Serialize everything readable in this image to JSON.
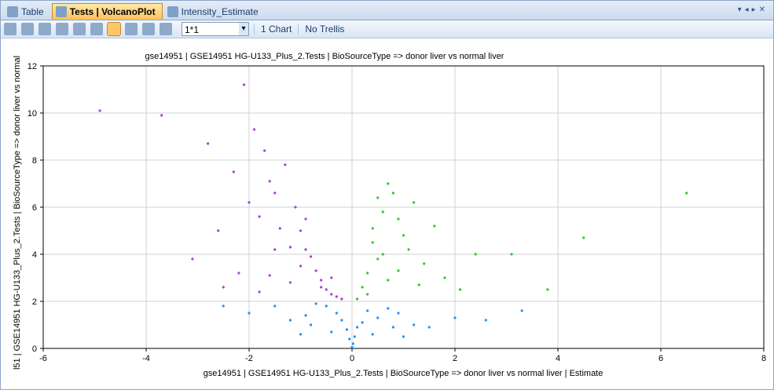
{
  "tabs": [
    "Table",
    "Tests | VolcanoPlot",
    "Intensity_Estimate"
  ],
  "toolbar": {
    "combo": "1*1",
    "buttons": [
      "1 Chart",
      "No Trellis"
    ]
  },
  "chart_data": {
    "type": "scatter",
    "title": "gse14951 | GSE14951 HG-U133_Plus_2.Tests | BioSourceType => donor liver vs normal liver",
    "x_label": "gse14951 | GSE14951 HG-U133_Plus_2.Tests | BioSourceType => donor liver vs normal liver | Estimate",
    "y_label": "l51 | GSE14951 HG-U133_Plus_2.Tests | BioSourceType => donor liver vs normal",
    "xlim": [
      -6,
      8
    ],
    "xticks": [
      -6,
      -4,
      -2,
      0,
      2,
      4,
      6,
      8
    ],
    "ylim": [
      0,
      12
    ],
    "yticks": [
      0,
      2,
      4,
      6,
      8,
      10,
      12
    ],
    "grid": true,
    "series": [
      {
        "color": "#a83fd8",
        "x": [
          -4.9,
          -3.7,
          -3.1,
          -2.8,
          -2.6,
          -2.3,
          -2.1,
          -2.0,
          -1.9,
          -1.8,
          -1.7,
          -1.6,
          -1.5,
          -1.4,
          -1.3,
          -1.2,
          -1.1,
          -1.0,
          -0.9,
          -0.8,
          -0.7,
          -0.6,
          -0.5,
          -0.4,
          -0.3,
          -0.2,
          -1.5,
          -1.0,
          -0.6,
          -2.2,
          -1.8,
          -1.2,
          -0.9,
          -0.4,
          -2.5,
          -1.6
        ],
        "values": [
          10.1,
          9.9,
          3.8,
          8.7,
          5.0,
          7.5,
          11.2,
          6.2,
          9.3,
          5.6,
          8.4,
          7.1,
          6.6,
          5.1,
          7.8,
          4.3,
          6.0,
          5.0,
          4.2,
          3.9,
          3.3,
          2.9,
          2.5,
          2.3,
          2.2,
          2.1,
          4.2,
          3.5,
          2.6,
          3.2,
          2.4,
          2.8,
          5.5,
          3.0,
          2.6,
          3.1
        ]
      },
      {
        "color": "#33c433",
        "x": [
          0.1,
          0.2,
          0.3,
          0.4,
          0.5,
          0.6,
          0.7,
          0.8,
          0.9,
          1.0,
          1.1,
          1.2,
          1.4,
          1.6,
          1.8,
          2.1,
          2.4,
          3.1,
          3.8,
          4.5,
          6.5,
          0.3,
          0.5,
          0.7,
          0.4,
          0.9,
          1.3,
          0.6
        ],
        "values": [
          2.1,
          2.6,
          3.2,
          4.5,
          6.4,
          5.8,
          7.0,
          6.6,
          5.5,
          4.8,
          4.2,
          6.2,
          3.6,
          5.2,
          3.0,
          2.5,
          4.0,
          4.0,
          2.5,
          4.7,
          6.6,
          2.3,
          3.8,
          2.9,
          5.1,
          3.3,
          2.7,
          4.0
        ]
      },
      {
        "color": "#2490f0",
        "x": [
          0,
          0.02,
          -0.05,
          0.05,
          -0.1,
          0.1,
          -0.2,
          0.2,
          -0.3,
          0.3,
          -0.5,
          0.5,
          -0.7,
          0.7,
          -0.9,
          0.9,
          -1.2,
          1.2,
          -1.5,
          1.5,
          -2.0,
          2.0,
          -2.5,
          2.6,
          3.3,
          -0.4,
          0.4,
          -0.8,
          0.8,
          -1.0,
          1.0
        ],
        "values": [
          0.05,
          0.2,
          0.4,
          0.5,
          0.8,
          0.9,
          1.2,
          1.1,
          1.5,
          1.6,
          1.8,
          1.3,
          1.9,
          1.7,
          1.4,
          1.5,
          1.2,
          1.0,
          1.8,
          0.9,
          1.5,
          1.3,
          1.8,
          1.2,
          1.6,
          0.7,
          0.6,
          1.0,
          0.9,
          0.6,
          0.5
        ]
      }
    ]
  }
}
